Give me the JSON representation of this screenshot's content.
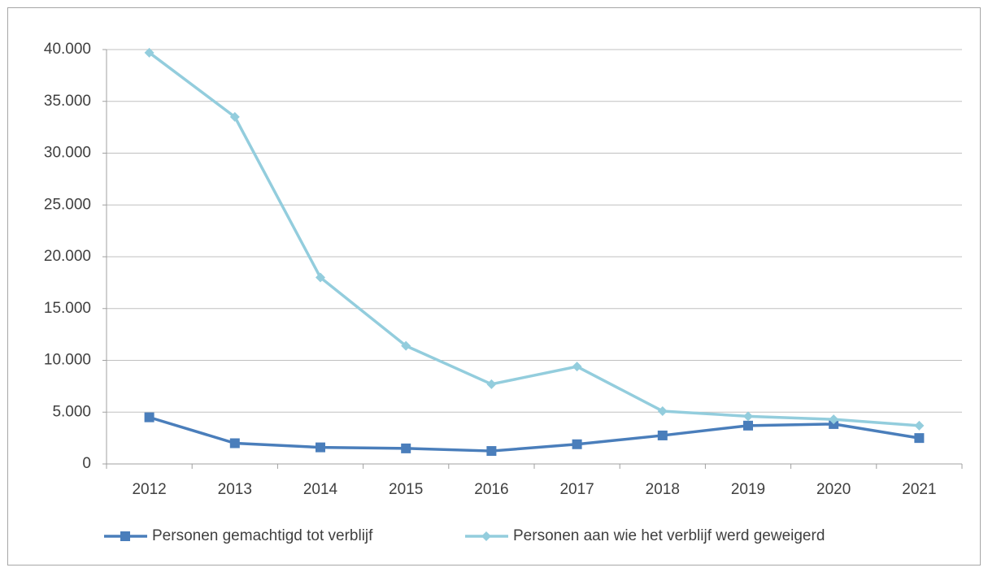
{
  "chart_data": {
    "type": "line",
    "categories": [
      "2012",
      "2013",
      "2014",
      "2015",
      "2016",
      "2017",
      "2018",
      "2019",
      "2020",
      "2021"
    ],
    "series": [
      {
        "name": "Personen gemachtigd tot verblijf",
        "color": "#4a7ebb",
        "marker": "square",
        "values": [
          4500,
          2000,
          1600,
          1500,
          1250,
          1900,
          2750,
          3700,
          3850,
          2500
        ]
      },
      {
        "name": "Personen aan wie het verblijf werd geweigerd",
        "color": "#93cddd",
        "marker": "diamond",
        "values": [
          39700,
          33500,
          18000,
          11400,
          7700,
          9400,
          5100,
          4600,
          4300,
          3700
        ]
      }
    ],
    "ylim": [
      0,
      40000
    ],
    "yticks": [
      0,
      {
        "value": 5000,
        "label": "5.000"
      },
      {
        "value": 10000,
        "label": "10.000"
      },
      {
        "value": 15000,
        "label": "15.000"
      },
      {
        "value": 20000,
        "label": "20.000"
      },
      {
        "value": 25000,
        "label": "25.000"
      },
      {
        "value": 30000,
        "label": "30.000"
      },
      {
        "value": 35000,
        "label": "35.000"
      },
      {
        "value": 40000,
        "label": "40.000"
      }
    ],
    "grid": true,
    "legend": "bottom"
  }
}
